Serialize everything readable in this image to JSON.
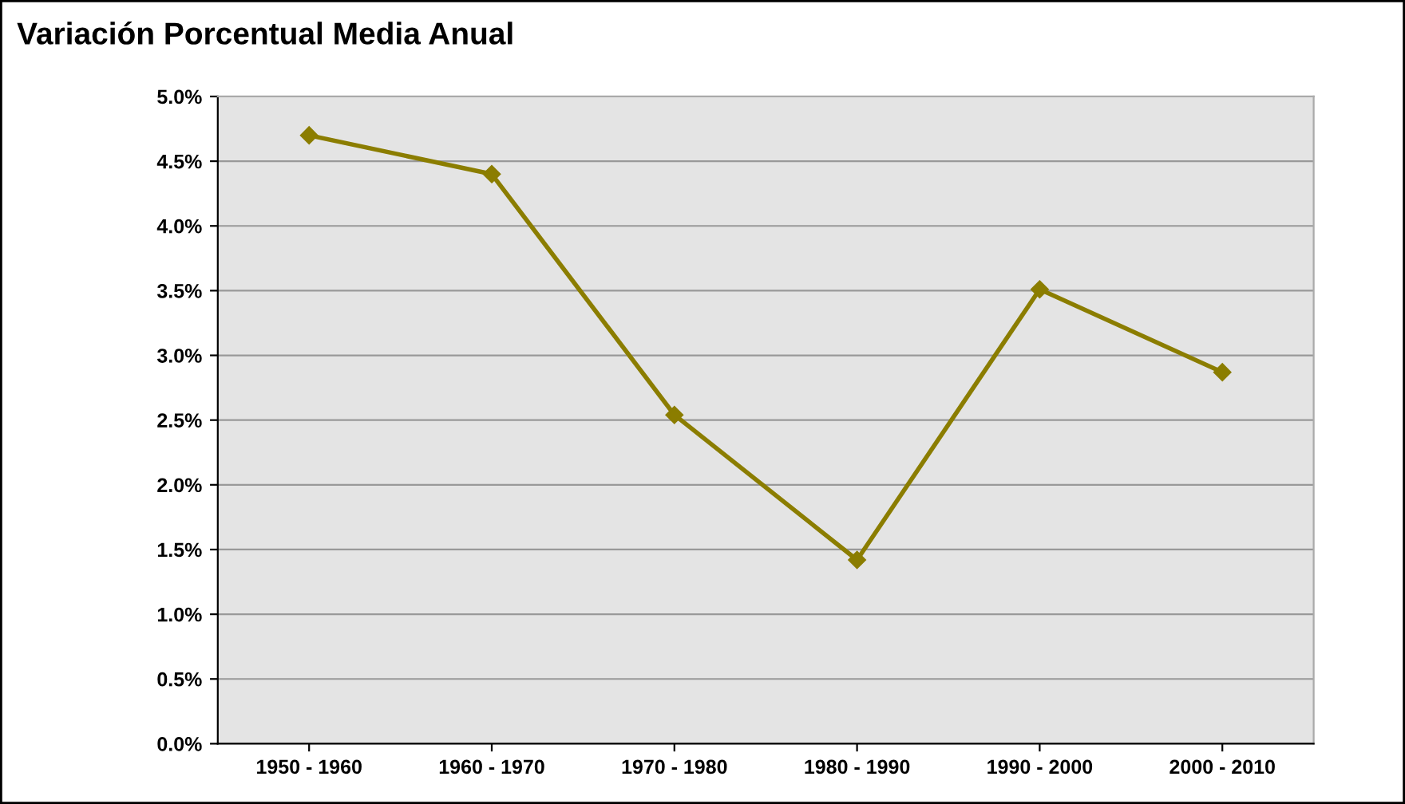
{
  "chart_data": {
    "type": "line",
    "title": "Variación Porcentual Media Anual",
    "categories": [
      "1950 - 1960",
      "1960 - 1970",
      "1970 - 1980",
      "1980 - 1990",
      "1990 - 2000",
      "2000 - 2010"
    ],
    "series": [
      {
        "color": "#8b7d00",
        "values": [
          4.7,
          4.4,
          2.54,
          1.42,
          3.51,
          2.87
        ]
      }
    ],
    "ylim": [
      0,
      5
    ],
    "yticks": [
      {
        "value": 0,
        "label": "0.0%"
      },
      {
        "value": 0.5,
        "label": "0.5%"
      },
      {
        "value": 1,
        "label": "1.0%"
      },
      {
        "value": 1.5,
        "label": "1.5%"
      },
      {
        "value": 2,
        "label": "2.0%"
      },
      {
        "value": 2.5,
        "label": "2.5%"
      },
      {
        "value": 3,
        "label": "3.0%"
      },
      {
        "value": 3.5,
        "label": "3.5%"
      },
      {
        "value": 4,
        "label": "4.0%"
      },
      {
        "value": 4.5,
        "label": "4.5%"
      },
      {
        "value": 5,
        "label": "5.0%"
      }
    ],
    "grid": "y",
    "marker": "diamond",
    "line_style": "solid"
  }
}
